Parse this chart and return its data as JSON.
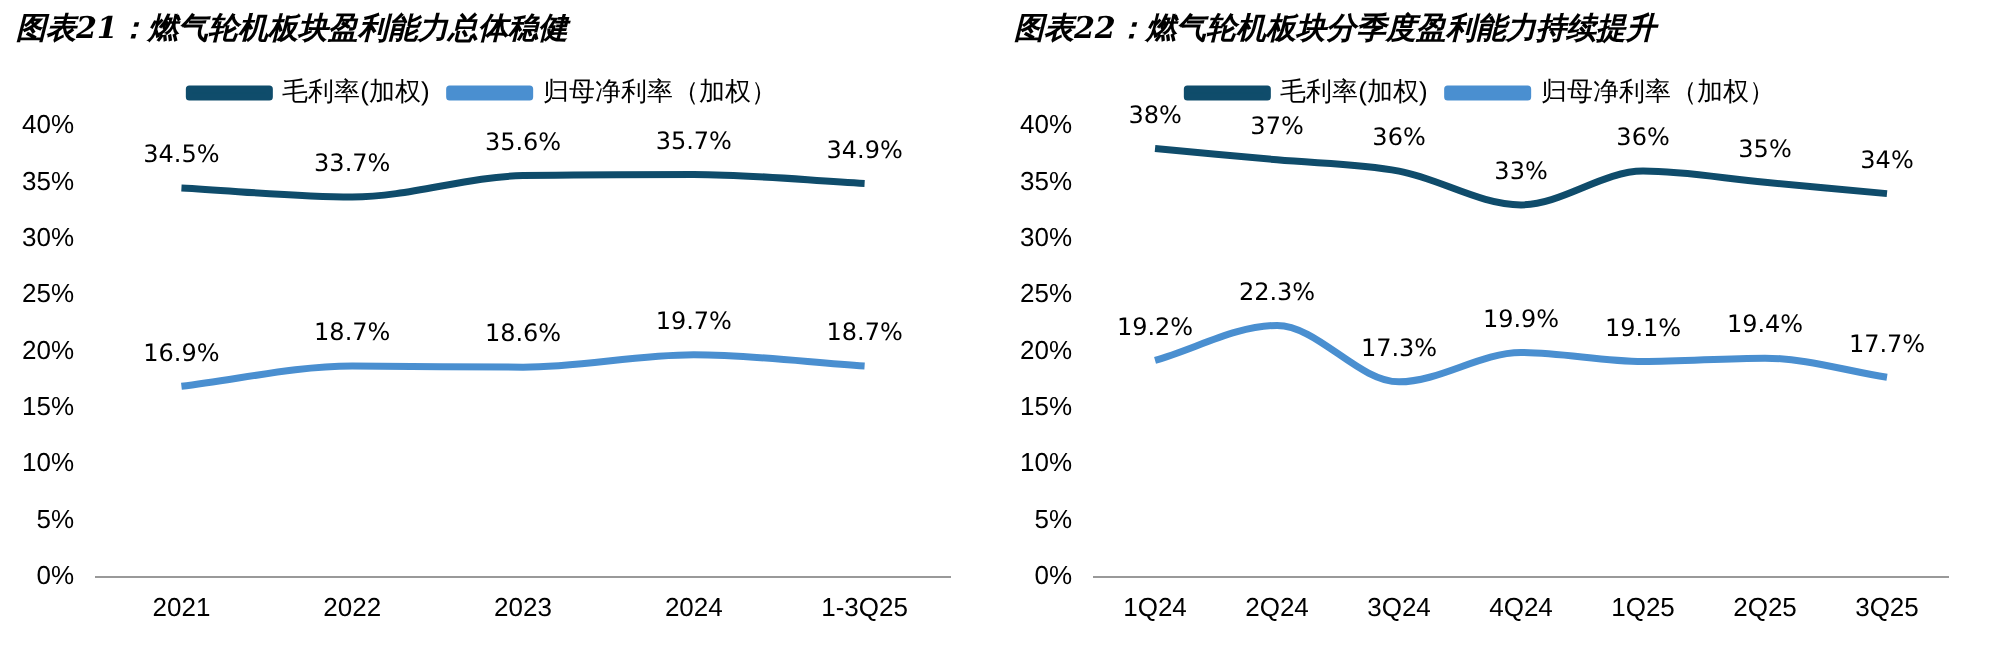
{
  "chart_data": [
    {
      "type": "line",
      "title": "图表21：燃气轮机板块盈利能力总体稳健",
      "categories": [
        "2021",
        "2022",
        "2023",
        "2024",
        "1-3Q25"
      ],
      "series": [
        {
          "name": "毛利率(加权)",
          "color": "#0f4c6b",
          "values": [
            34.5,
            33.7,
            35.6,
            35.7,
            34.9
          ],
          "value_labels": [
            "34.5%",
            "33.7%",
            "35.6%",
            "35.7%",
            "34.9%"
          ]
        },
        {
          "name": "归母净利率（加权）",
          "color": "#4a8fd0",
          "values": [
            16.9,
            18.7,
            18.6,
            19.7,
            18.7
          ],
          "value_labels": [
            "16.9%",
            "18.7%",
            "18.6%",
            "19.7%",
            "18.7%"
          ]
        }
      ],
      "ylim": [
        0,
        40
      ],
      "yticks": [
        {
          "value": 0,
          "label": "0%"
        },
        {
          "value": 5,
          "label": "5%"
        },
        {
          "value": 10,
          "label": "10%"
        },
        {
          "value": 15,
          "label": "15%"
        },
        {
          "value": 20,
          "label": "20%"
        },
        {
          "value": 25,
          "label": "25%"
        },
        {
          "value": 30,
          "label": "30%"
        },
        {
          "value": 35,
          "label": "35%"
        },
        {
          "value": 40,
          "label": "40%"
        }
      ],
      "legend": "top",
      "marker": "none"
    },
    {
      "type": "line",
      "title": "图表22：燃气轮机板块分季度盈利能力持续提升",
      "categories": [
        "1Q24",
        "2Q24",
        "3Q24",
        "4Q24",
        "1Q25",
        "2Q25",
        "3Q25"
      ],
      "series": [
        {
          "name": "毛利率(加权)",
          "color": "#0f4c6b",
          "values": [
            38,
            37,
            36,
            33,
            36,
            35,
            34
          ],
          "value_labels": [
            "38%",
            "37%",
            "36%",
            "33%",
            "36%",
            "35%",
            "34%"
          ]
        },
        {
          "name": "归母净利率（加权）",
          "color": "#4a8fd0",
          "values": [
            19.2,
            22.3,
            17.3,
            19.9,
            19.1,
            19.4,
            17.7
          ],
          "value_labels": [
            "19.2%",
            "22.3%",
            "17.3%",
            "19.9%",
            "19.1%",
            "19.4%",
            "17.7%"
          ]
        }
      ],
      "ylim": [
        0,
        40
      ],
      "yticks": [
        {
          "value": 0,
          "label": "0%"
        },
        {
          "value": 5,
          "label": "5%"
        },
        {
          "value": 10,
          "label": "10%"
        },
        {
          "value": 15,
          "label": "15%"
        },
        {
          "value": 20,
          "label": "20%"
        },
        {
          "value": 25,
          "label": "25%"
        },
        {
          "value": 30,
          "label": "30%"
        },
        {
          "value": 35,
          "label": "35%"
        },
        {
          "value": 40,
          "label": "40%"
        }
      ],
      "legend": "top",
      "marker": "none"
    }
  ]
}
